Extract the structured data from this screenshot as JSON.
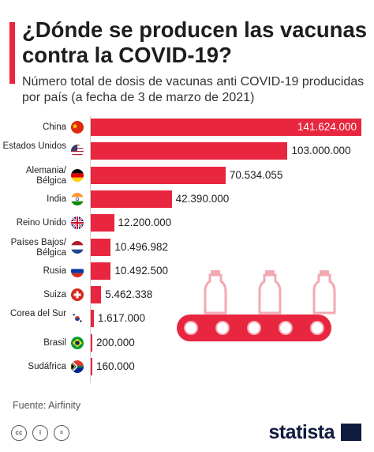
{
  "title": "¿Dónde se producen las vacunas contra la COVID-19?",
  "subtitle": "Número total de dosis de vacunas anti COVID-19 producidas por país (a fecha de 3 de marzo de 2021)",
  "source": "Fuente: Airfinity",
  "brand": "statista",
  "license_labels": [
    "cc",
    "i",
    "="
  ],
  "colors": {
    "accent": "#e8263f",
    "brand": "#0f1c3f"
  },
  "chart_data": {
    "type": "bar",
    "orientation": "horizontal",
    "title": "¿Dónde se producen las vacunas contra la COVID-19?",
    "subtitle": "Número total de dosis de vacunas anti COVID-19 producidas por país (a fecha de 3 de marzo de 2021)",
    "categories": [
      "China",
      "Estados Unidos",
      "Alemania/ Bélgica",
      "India",
      "Reino Unido",
      "Países Bajos/ Bélgica",
      "Rusia",
      "Suiza",
      "Corea del Sur",
      "Brasil",
      "Sudáfrica"
    ],
    "values": [
      141624000,
      103000000,
      70534055,
      42390000,
      12200000,
      10496982,
      10492500,
      5462338,
      1617000,
      200000,
      160000
    ],
    "value_labels": [
      "141.624.000",
      "103.000.000",
      "70.534.055",
      "42.390.000",
      "12.200.000",
      "10.496.982",
      "10.492.500",
      "5.462.338",
      "1.617.000",
      "200.000",
      "160.000"
    ],
    "flags": [
      "china-flag-icon",
      "usa-flag-icon",
      "germany-belgium-flag-icon",
      "india-flag-icon",
      "uk-flag-icon",
      "netherlands-belgium-flag-icon",
      "russia-flag-icon",
      "switzerland-flag-icon",
      "south-korea-flag-icon",
      "brazil-flag-icon",
      "south-africa-flag-icon"
    ],
    "xlim": [
      0,
      141624000
    ],
    "grid": false,
    "legend": "none",
    "illustration": "vaccine-conveyor-belt-icon"
  }
}
